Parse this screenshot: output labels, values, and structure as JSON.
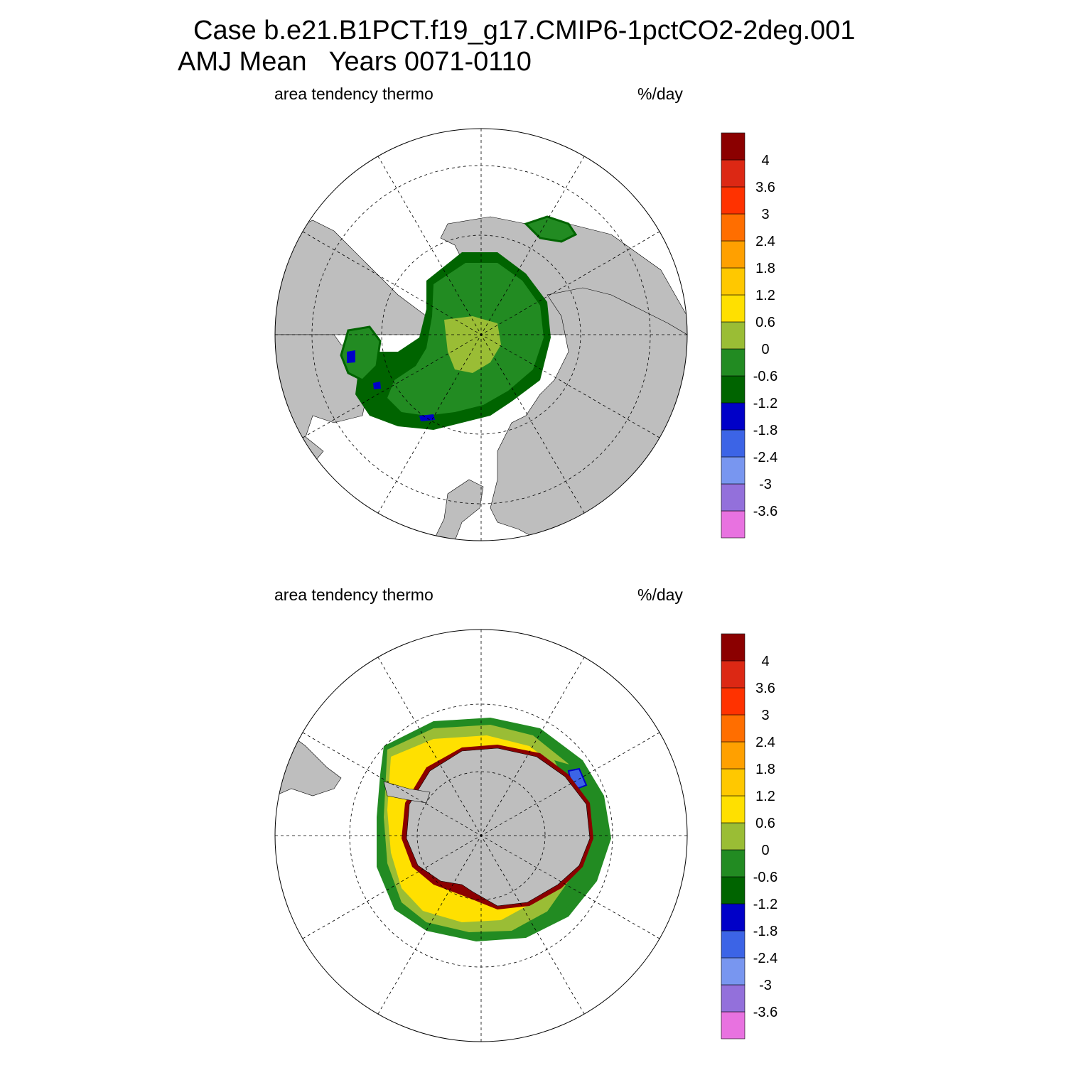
{
  "figure": {
    "title_line1": "Case b.e21.B1PCT.f19_g17.CMIP6-1pctCO2-2deg.001",
    "title_line2": "AMJ Mean   Years 0071-0110"
  },
  "colors": {
    "land": "#bebebe",
    "ocean_no_data": "#ffffff",
    "colorbar": [
      "#e872e0",
      "#9370db",
      "#7896f0",
      "#3c64e6",
      "#0000c8",
      "#006400",
      "#228b22",
      "#9abd35",
      "#ffe000",
      "#ffc800",
      "#ffa000",
      "#ff6e00",
      "#ff3200",
      "#dc2814",
      "#8b0000"
    ]
  },
  "panels": [
    {
      "id": "north",
      "left_label": "area tendency thermo",
      "right_label": "%/day",
      "hemisphere": "Northern",
      "projection": "polar stereographic"
    },
    {
      "id": "south",
      "left_label": "area tendency thermo",
      "right_label": "%/day",
      "hemisphere": "Southern",
      "projection": "polar stereographic"
    }
  ],
  "colorbar": {
    "labels": [
      "4",
      "3.6",
      "3",
      "2.4",
      "1.8",
      "1.2",
      "0.6",
      "0",
      "-0.6",
      "-1.2",
      "-1.8",
      "-2.4",
      "-3",
      "-3.6"
    ]
  }
}
